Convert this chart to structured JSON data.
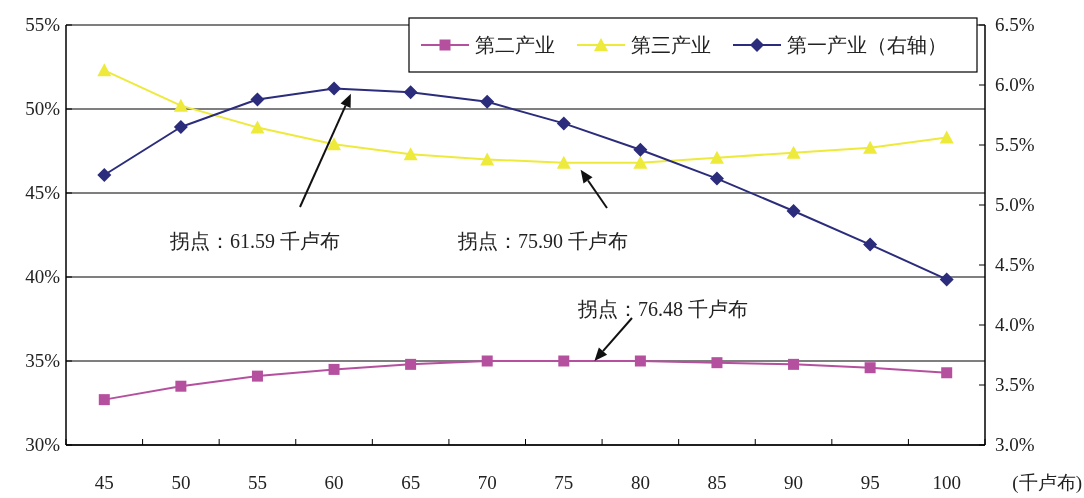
{
  "chart_data": {
    "type": "line",
    "categories": [
      "45",
      "50",
      "55",
      "60",
      "65",
      "70",
      "75",
      "80",
      "85",
      "90",
      "95",
      "100"
    ],
    "xlabel": "(千卢布)",
    "series": [
      {
        "name": "第二产业",
        "color": "#b5509f",
        "marker": "square",
        "values": [
          32.7,
          33.5,
          34.1,
          34.5,
          34.8,
          35.0,
          35.0,
          35.0,
          34.9,
          34.8,
          34.6,
          34.3
        ]
      },
      {
        "name": "第三产业",
        "color": "#eeea3c",
        "marker": "triangle",
        "values": [
          52.3,
          50.2,
          48.9,
          47.9,
          47.3,
          47.0,
          46.8,
          46.8,
          47.1,
          47.4,
          47.7,
          48.3
        ]
      },
      {
        "name": "第一产业（右轴）",
        "color": "#2b2c7c",
        "marker": "diamond",
        "axis": "y2",
        "values": [
          5.25,
          5.65,
          5.88,
          5.97,
          5.94,
          5.86,
          5.68,
          5.46,
          5.22,
          4.95,
          4.67,
          4.38
        ]
      }
    ],
    "ylim": [
      30,
      55
    ],
    "yticks": [
      {
        "value": 30,
        "label": "30%"
      },
      {
        "value": 35,
        "label": "35%"
      },
      {
        "value": 40,
        "label": "40%"
      },
      {
        "value": 45,
        "label": "45%"
      },
      {
        "value": 50,
        "label": "50%"
      },
      {
        "value": 55,
        "label": "55%"
      }
    ],
    "y2lim": [
      3.0,
      6.5
    ],
    "y2ticks": [
      {
        "value": 3.0,
        "label": "3.0%"
      },
      {
        "value": 3.5,
        "label": "3.5%"
      },
      {
        "value": 4.0,
        "label": "4.0%"
      },
      {
        "value": 4.5,
        "label": "4.5%"
      },
      {
        "value": 5.0,
        "label": "5.0%"
      },
      {
        "value": 5.5,
        "label": "5.5%"
      },
      {
        "value": 6.0,
        "label": "6.0%"
      },
      {
        "value": 6.5,
        "label": "6.5%"
      }
    ],
    "grid": "y",
    "legend": "top right",
    "annotations": [
      "拐点：61.59 千卢布",
      "拐点：75.90 千卢布",
      "拐点：76.48 千卢布"
    ]
  }
}
